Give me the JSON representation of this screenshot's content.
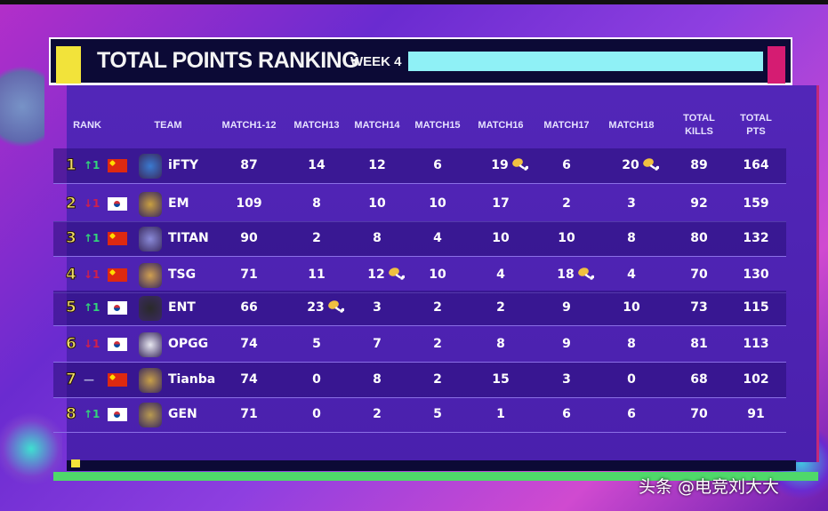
{
  "header": {
    "title": "TOTAL POINTS RANKING",
    "week": "WEEK 4"
  },
  "columns": [
    "RANK",
    "TEAM",
    "MATCH1-12",
    "MATCH13",
    "MATCH14",
    "MATCH15",
    "MATCH16",
    "MATCH17",
    "MATCH18",
    "TOTAL KILLS",
    "TOTAL PTS"
  ],
  "rows": [
    {
      "rank": "1",
      "move": "↑1",
      "dir": "up",
      "flag": "cn",
      "team": "iFTY",
      "m": [
        "87",
        "14",
        "12",
        "6",
        "19",
        "6",
        "20"
      ],
      "chicken": [
        4,
        6
      ],
      "kills": "89",
      "pts": "164",
      "logo": "#3a7ad0"
    },
    {
      "rank": "2",
      "move": "↓1",
      "dir": "down",
      "flag": "kr",
      "team": "EM",
      "m": [
        "109",
        "8",
        "10",
        "10",
        "17",
        "2",
        "3"
      ],
      "chicken": [],
      "kills": "92",
      "pts": "159",
      "logo": "#c9a040"
    },
    {
      "rank": "3",
      "move": "↑1",
      "dir": "up",
      "flag": "cn",
      "team": "TITAN",
      "m": [
        "90",
        "2",
        "8",
        "4",
        "10",
        "10",
        "8"
      ],
      "chicken": [],
      "kills": "80",
      "pts": "132",
      "logo": "#8a8ad8"
    },
    {
      "rank": "4",
      "move": "↓1",
      "dir": "down",
      "flag": "cn",
      "team": "TSG",
      "m": [
        "71",
        "11",
        "12",
        "10",
        "4",
        "18",
        "4"
      ],
      "chicken": [
        2,
        5
      ],
      "kills": "70",
      "pts": "130",
      "logo": "#d0a050"
    },
    {
      "rank": "5",
      "move": "↑1",
      "dir": "up",
      "flag": "kr",
      "team": "ENT",
      "m": [
        "66",
        "23",
        "3",
        "2",
        "2",
        "9",
        "10"
      ],
      "chicken": [
        1
      ],
      "kills": "73",
      "pts": "115",
      "logo": "#2a2a2a"
    },
    {
      "rank": "6",
      "move": "↓1",
      "dir": "down",
      "flag": "kr",
      "team": "OPGG",
      "m": [
        "74",
        "5",
        "7",
        "2",
        "8",
        "9",
        "8"
      ],
      "chicken": [],
      "kills": "81",
      "pts": "113",
      "logo": "#e8e8f0"
    },
    {
      "rank": "7",
      "move": "—",
      "dir": "same",
      "flag": "cn",
      "team": "Tianba",
      "m": [
        "74",
        "0",
        "8",
        "2",
        "15",
        "3",
        "0"
      ],
      "chicken": [],
      "kills": "68",
      "pts": "102",
      "logo": "#c8a048"
    },
    {
      "rank": "8",
      "move": "↑1",
      "dir": "up",
      "flag": "kr",
      "team": "GEN",
      "m": [
        "71",
        "0",
        "2",
        "5",
        "1",
        "6",
        "6"
      ],
      "chicken": [],
      "kills": "70",
      "pts": "91",
      "logo": "#b89a50"
    }
  ],
  "watermark": "头条 @电竞刘大大",
  "colors": {
    "accent_yellow": "#f2e33a",
    "cyan": "#8ff1f6",
    "pink": "#d51c72",
    "panel": "#4b22b0",
    "up": "#33d47a",
    "down": "#d0204a"
  }
}
